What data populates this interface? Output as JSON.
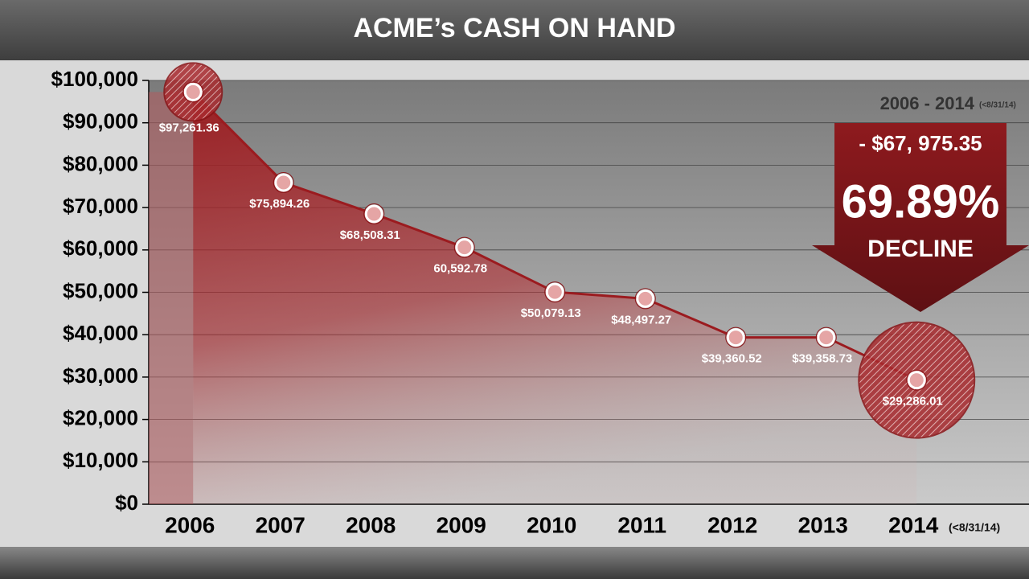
{
  "chart_data": {
    "type": "area",
    "title": "ACME’s CASH ON HAND",
    "categories": [
      "2006",
      "2007",
      "2008",
      "2009",
      "2010",
      "2011",
      "2012",
      "2013",
      "2014"
    ],
    "values": [
      97261.36,
      75894.26,
      68508.31,
      60592.78,
      50079.13,
      48497.27,
      39360.52,
      39358.73,
      29286.01
    ],
    "value_labels": [
      "$97,261.36",
      "$75,894.26",
      "$68,508.31",
      "60,592.78",
      "$50,079.13",
      "$48,497.27",
      "$39,360.52",
      "$39,358.73",
      "$29,286.01"
    ],
    "color": "#9b1b1f",
    "ylim": [
      0,
      100000
    ],
    "yticks": [
      {
        "value": 0,
        "label": "$0"
      },
      {
        "value": 10000,
        "label": "$10,000"
      },
      {
        "value": 20000,
        "label": "$20,000"
      },
      {
        "value": 30000,
        "label": "$30,000"
      },
      {
        "value": 40000,
        "label": "$40,000"
      },
      {
        "value": 50000,
        "label": "$50,000"
      },
      {
        "value": 60000,
        "label": "$60,000"
      },
      {
        "value": 70000,
        "label": "$70,000"
      },
      {
        "value": 80000,
        "label": "$80,000"
      },
      {
        "value": 90000,
        "label": "$90,000"
      },
      {
        "value": 100000,
        "label": "$100,000"
      }
    ],
    "grid": true,
    "annotations": {
      "period": "2006 - 2014",
      "period_note": "(<8/31/14)",
      "change": "- $67, 975.35",
      "percent": "69.89%",
      "percent_caption": "DECLINE",
      "last_category_note": "(<8/31/14)"
    }
  }
}
